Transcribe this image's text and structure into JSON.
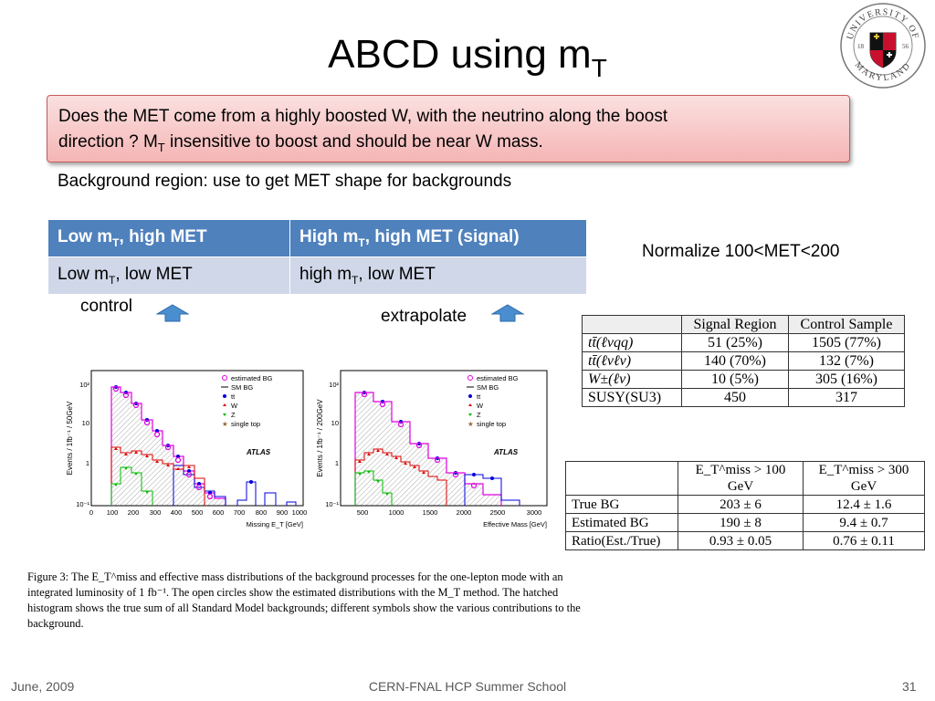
{
  "slide": {
    "title_main": "ABCD using m",
    "title_sub": "T",
    "question": {
      "line1": "Does the MET come from a highly boosted W, with the neutrino along the boost",
      "line2_pre": "direction ?  M",
      "line2_sub": "T",
      "line2_post": " insensitive to boost and should be near W mass."
    },
    "background_region": "Background region: use to get MET shape for backgrounds",
    "abcd_table": {
      "top_left": {
        "pre": "Low m",
        "sub": "T",
        "post": ", high MET"
      },
      "top_right": {
        "pre": "High m",
        "sub": "T",
        "post": ", high MET (signal)"
      },
      "bottom_left": {
        "pre": "Low m",
        "sub": "T",
        "post": ", low MET"
      },
      "bottom_right": {
        "pre": "high m",
        "sub": "T",
        "post": ", low MET"
      }
    },
    "normalize": "Normalize 100<MET<200",
    "control_label": "control",
    "extrapolate_label": "extrapolate"
  },
  "logo": {
    "top_text": "UNIVERSITY OF",
    "bottom_text": "MARYLAND",
    "year_left": "18",
    "year_right": "56"
  },
  "plots": {
    "legend": [
      "estimated BG",
      "SM BG",
      "tt",
      "W",
      "Z",
      "single top"
    ],
    "atlas": "ATLAS",
    "plot1": {
      "ylabel": "Events / 1fb⁻¹ / 50GeV",
      "xlabel": "Missing E_T [GeV]",
      "xticks": [
        "0",
        "100",
        "200",
        "300",
        "400",
        "500",
        "600",
        "700",
        "800",
        "900",
        "1000"
      ],
      "yticks": [
        "10²",
        "10",
        "1",
        "10⁻¹"
      ]
    },
    "plot2": {
      "ylabel": "Events / 1fb⁻¹ / 200GeV",
      "xlabel": "Effective Mass [GeV]",
      "xticks": [
        "500",
        "1000",
        "1500",
        "2000",
        "2500",
        "3000"
      ],
      "yticks": [
        "10²",
        "10",
        "1",
        "10⁻¹"
      ]
    }
  },
  "signal_table": {
    "headers": [
      "",
      "Signal Region",
      "Control Sample"
    ],
    "rows": [
      [
        "tt̄(ℓνqq)",
        "51 (25%)",
        "1505 (77%)"
      ],
      [
        "tt̄(ℓνℓν)",
        "140 (70%)",
        "132 (7%)"
      ],
      [
        "W±(ℓν)",
        "10 (5%)",
        "305 (16%)"
      ],
      [
        "SUSY(SU3)",
        "450",
        "317"
      ]
    ]
  },
  "met_table": {
    "headers": [
      "",
      "E_T^miss > 100 GeV",
      "E_T^miss > 300 GeV"
    ],
    "rows": [
      [
        "True BG",
        "203 ± 6",
        "12.4 ± 1.6"
      ],
      [
        "Estimated BG",
        "190 ± 8",
        "9.4 ± 0.7"
      ],
      [
        "Ratio(Est./True)",
        "0.93 ± 0.05",
        "0.76 ± 0.11"
      ]
    ]
  },
  "caption": {
    "text": "Figure 3:  The E_T^miss and effective mass distributions of the background processes for the one-lepton mode with an integrated luminosity of 1 fb⁻¹. The open circles show the estimated distributions with the M_T method.  The hatched histogram shows the true sum of all Standard Model backgrounds; different symbols show the various contributions to the background."
  },
  "footer": {
    "date": "June, 2009",
    "center": "CERN-FNAL HCP Summer School",
    "page": "31"
  },
  "colors": {
    "table_header": "#4f81bd",
    "table_row": "#cfd7e8",
    "question_bg": "#f5b5b5",
    "arrow": "#4a8ed0"
  }
}
